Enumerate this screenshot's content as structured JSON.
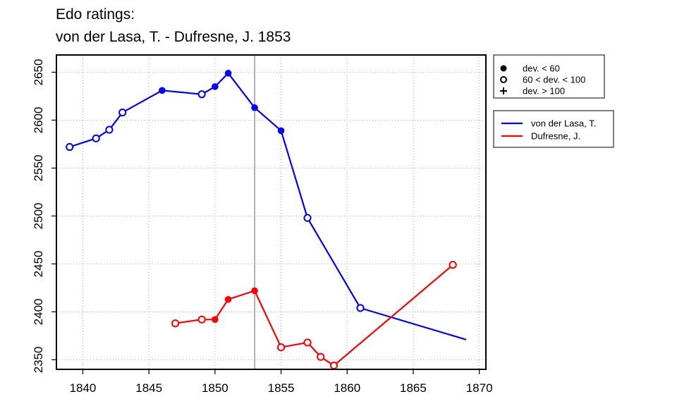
{
  "chart_data": {
    "type": "line",
    "title_line1": "Edo ratings:",
    "title_line2": "von der Lasa, T. - Dufresne, J. 1853",
    "xlabel": "",
    "ylabel": "",
    "xlim": [
      1838,
      1870.5
    ],
    "ylim": [
      2340,
      2668
    ],
    "x_ticks": [
      1840,
      1845,
      1850,
      1855,
      1860,
      1865,
      1870
    ],
    "y_ticks": [
      2350,
      2400,
      2450,
      2500,
      2550,
      2600,
      2650
    ],
    "grid": "dotted",
    "marker_line_x": 1853,
    "legend_markers": {
      "position": "top-right",
      "items": [
        {
          "symbol": "filled-circle",
          "label": "dev. < 60"
        },
        {
          "symbol": "open-circle",
          "label": "60 < dev. < 100"
        },
        {
          "symbol": "plus",
          "label": "dev. > 100"
        }
      ]
    },
    "legend_series": {
      "position": "right",
      "items": [
        {
          "label": "von der Lasa, T.",
          "color": "#0000ff"
        },
        {
          "label": "Dufresne, J.",
          "color": "#ff0000"
        }
      ]
    },
    "series": [
      {
        "name": "von der Lasa, T.",
        "color": "#0000ff",
        "points": [
          {
            "x": 1839,
            "y": 2572,
            "m": "open"
          },
          {
            "x": 1841,
            "y": 2581,
            "m": "open"
          },
          {
            "x": 1842,
            "y": 2590,
            "m": "open"
          },
          {
            "x": 1843,
            "y": 2608,
            "m": "open"
          },
          {
            "x": 1846,
            "y": 2631,
            "m": "filled"
          },
          {
            "x": 1849,
            "y": 2627,
            "m": "open"
          },
          {
            "x": 1850,
            "y": 2635,
            "m": "filled"
          },
          {
            "x": 1851,
            "y": 2649,
            "m": "filled"
          },
          {
            "x": 1853,
            "y": 2613,
            "m": "filled"
          },
          {
            "x": 1855,
            "y": 2589,
            "m": "filled"
          },
          {
            "x": 1857,
            "y": 2498,
            "m": "open"
          },
          {
            "x": 1861,
            "y": 2404,
            "m": "open"
          },
          {
            "x": 1869,
            "y": 2371,
            "m": "none"
          }
        ]
      },
      {
        "name": "Dufresne, J.",
        "color": "#ff0000",
        "points": [
          {
            "x": 1847,
            "y": 2388,
            "m": "open"
          },
          {
            "x": 1849,
            "y": 2392,
            "m": "open"
          },
          {
            "x": 1850,
            "y": 2392,
            "m": "filled"
          },
          {
            "x": 1851,
            "y": 2413,
            "m": "filled"
          },
          {
            "x": 1853,
            "y": 2422,
            "m": "filled"
          },
          {
            "x": 1855,
            "y": 2363,
            "m": "open"
          },
          {
            "x": 1857,
            "y": 2368,
            "m": "open"
          },
          {
            "x": 1858,
            "y": 2353,
            "m": "open"
          },
          {
            "x": 1859,
            "y": 2344,
            "m": "open"
          },
          {
            "x": 1868,
            "y": 2449,
            "m": "open"
          }
        ]
      }
    ]
  }
}
